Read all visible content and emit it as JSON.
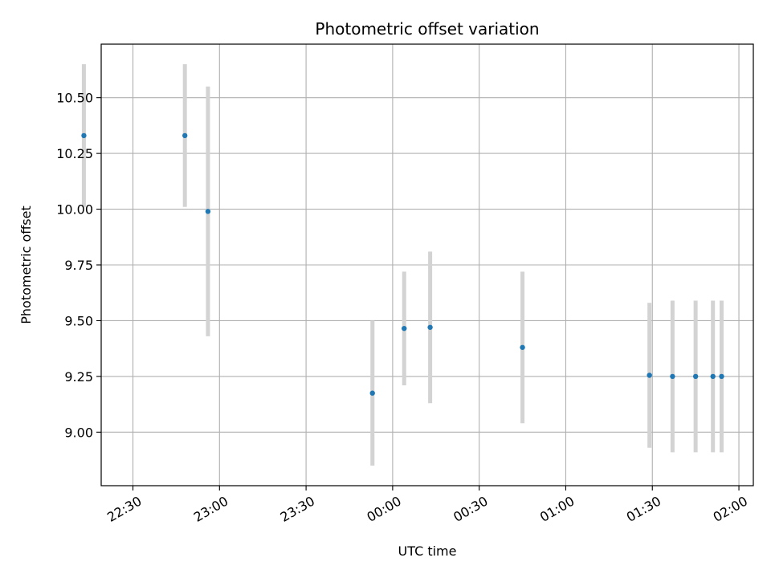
{
  "chart_data": {
    "type": "scatter",
    "title": "Photometric offset variation",
    "xlabel": "UTC time",
    "ylabel": "Photometric offset",
    "x_ticks": [
      "22:30",
      "23:00",
      "23:30",
      "00:00",
      "00:30",
      "01:00",
      "01:30",
      "02:00"
    ],
    "y_ticks": [
      "9.00",
      "9.25",
      "9.50",
      "9.75",
      "10.00",
      "10.25",
      "10.50"
    ],
    "x_axis": {
      "kind": "time",
      "tick_start": "22:30",
      "tick_step_minutes": 30,
      "range": [
        "22:19",
        "02:05"
      ]
    },
    "ylim": [
      8.76,
      10.74
    ],
    "grid": true,
    "point_color": "#1f77b4",
    "errorbar_color": "#d3d3d3",
    "points": [
      {
        "x": "22:13",
        "y": 10.33,
        "err": 0.32
      },
      {
        "x": "22:48",
        "y": 10.33,
        "err": 0.32
      },
      {
        "x": "22:56",
        "y": 9.99,
        "err": 0.56
      },
      {
        "x": "23:53",
        "y": 9.175,
        "err": 0.325
      },
      {
        "x": "00:04",
        "y": 9.465,
        "err": 0.255
      },
      {
        "x": "00:13",
        "y": 9.47,
        "err": 0.34
      },
      {
        "x": "00:45",
        "y": 9.38,
        "err": 0.34
      },
      {
        "x": "01:29",
        "y": 9.255,
        "err": 0.325
      },
      {
        "x": "01:37",
        "y": 9.25,
        "err": 0.34
      },
      {
        "x": "01:45",
        "y": 9.25,
        "err": 0.34
      },
      {
        "x": "01:51",
        "y": 9.25,
        "err": 0.34
      },
      {
        "x": "01:54",
        "y": 9.25,
        "err": 0.34
      }
    ]
  }
}
